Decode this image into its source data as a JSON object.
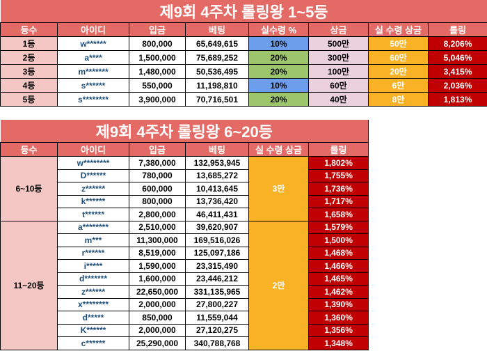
{
  "top": {
    "title": "제9회 4주차 롤링왕 1~5등",
    "headers": [
      "등수",
      "아이디",
      "입금",
      "베팅",
      "실수령 %",
      "상금",
      "실 수령 상금",
      "롤링"
    ],
    "rows": [
      {
        "rank": "1등",
        "id": "w******",
        "deposit": "800,000",
        "bet": "65,649,615",
        "rate": "10%",
        "prize": "500만",
        "real": "50만",
        "rolling": "8,206%",
        "rate_color": "#6d9eeb"
      },
      {
        "rank": "2등",
        "id": "a****",
        "deposit": "1,500,000",
        "bet": "75,689,252",
        "rate": "20%",
        "prize": "300만",
        "real": "60만",
        "rolling": "5,046%",
        "rate_color": "#9dc56c"
      },
      {
        "rank": "3등",
        "id": "m*******",
        "deposit": "1,480,000",
        "bet": "50,536,495",
        "rate": "20%",
        "prize": "100만",
        "real": "20만",
        "rolling": "3,415%",
        "rate_color": "#9dc56c"
      },
      {
        "rank": "4등",
        "id": "s******",
        "deposit": "550,000",
        "bet": "11,198,810",
        "rate": "10%",
        "prize": "60만",
        "real": "6만",
        "rolling": "2,036%",
        "rate_color": "#6d9eeb"
      },
      {
        "rank": "5등",
        "id": "s********",
        "deposit": "3,900,000",
        "bet": "70,716,501",
        "rate": "20%",
        "prize": "40만",
        "real": "8만",
        "rolling": "1,813%",
        "rate_color": "#9dc56c"
      }
    ]
  },
  "bottom": {
    "title": "제9회 4주차 롤링왕 6~20등",
    "headers": [
      "등수",
      "아이디",
      "입금",
      "베팅",
      "실 수령 상금",
      "롤링"
    ],
    "groups": [
      {
        "rank": "6~10등",
        "real": "3만",
        "rows": [
          {
            "id": "w********",
            "deposit": "7,380,000",
            "bet": "132,953,945",
            "rolling": "1,802%"
          },
          {
            "id": "D******",
            "deposit": "780,000",
            "bet": "13,685,272",
            "rolling": "1,755%"
          },
          {
            "id": "z******",
            "deposit": "600,000",
            "bet": "10,413,645",
            "rolling": "1,736%"
          },
          {
            "id": "k******",
            "deposit": "800,000",
            "bet": "13,736,420",
            "rolling": "1,717%"
          },
          {
            "id": "t******",
            "deposit": "2,800,000",
            "bet": "46,411,431",
            "rolling": "1,658%"
          }
        ]
      },
      {
        "rank": "11~20등",
        "real": "2만",
        "rows": [
          {
            "id": "a********",
            "deposit": "2,510,000",
            "bet": "39,620,907",
            "rolling": "1,579%"
          },
          {
            "id": "m***",
            "deposit": "11,300,000",
            "bet": "169,516,026",
            "rolling": "1,500%"
          },
          {
            "id": "r******",
            "deposit": "8,519,000",
            "bet": "125,097,186",
            "rolling": "1,468%"
          },
          {
            "id": "i*****",
            "deposit": "1,590,000",
            "bet": "23,315,490",
            "rolling": "1,466%"
          },
          {
            "id": "d*******",
            "deposit": "1,600,000",
            "bet": "23,446,212",
            "rolling": "1,465%"
          },
          {
            "id": "z******",
            "deposit": "22,650,000",
            "bet": "331,135,965",
            "rolling": "1,462%"
          },
          {
            "id": "x********",
            "deposit": "2,000,000",
            "bet": "27,800,227",
            "rolling": "1,390%"
          },
          {
            "id": "d*****",
            "deposit": "850,000",
            "bet": "11,559,044",
            "rolling": "1,360%"
          },
          {
            "id": "K******",
            "deposit": "2,000,000",
            "bet": "27,120,275",
            "rolling": "1,356%"
          },
          {
            "id": "c******",
            "deposit": "25,290,000",
            "bet": "340,788,768",
            "rolling": "1,348%"
          }
        ]
      }
    ]
  }
}
